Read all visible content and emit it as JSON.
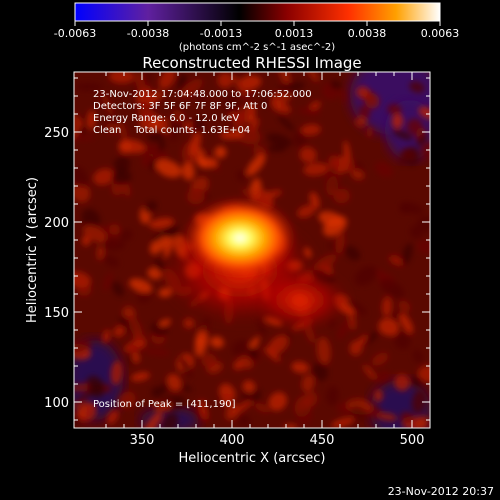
{
  "colorbar": {
    "ticks": [
      "-0.0063",
      "-0.0038",
      "-0.0013",
      "0.0013",
      "0.0038",
      "0.0063"
    ],
    "units": "(photons cm^-2 s^-1 asec^-2)",
    "colors": [
      "#0000ff",
      "#6020a0",
      "#000000",
      "#8a0000",
      "#ff3000",
      "#ffa000",
      "#ffffff"
    ]
  },
  "title": "Reconstructed RHESSI Image",
  "info": {
    "time_range": "23-Nov-2012 17:04:48.000 to 17:06:52.000",
    "detectors": "Detectors: 3F 5F 6F 7F 8F 9F, Att 0",
    "energy": "Energy Range: 6.0 - 12.0 keV",
    "clean_counts": "Clean    Total counts: 1.63E+04",
    "peak": "Position of Peak = [411,190]"
  },
  "axes": {
    "xlabel": "Heliocentric X (arcsec)",
    "ylabel": "Heliocentric Y (arcsec)",
    "xticks": [
      "350",
      "400",
      "450",
      "500"
    ],
    "yticks": [
      "250",
      "200",
      "150",
      "100"
    ]
  },
  "footer": "23-Nov-2012 20:37"
}
